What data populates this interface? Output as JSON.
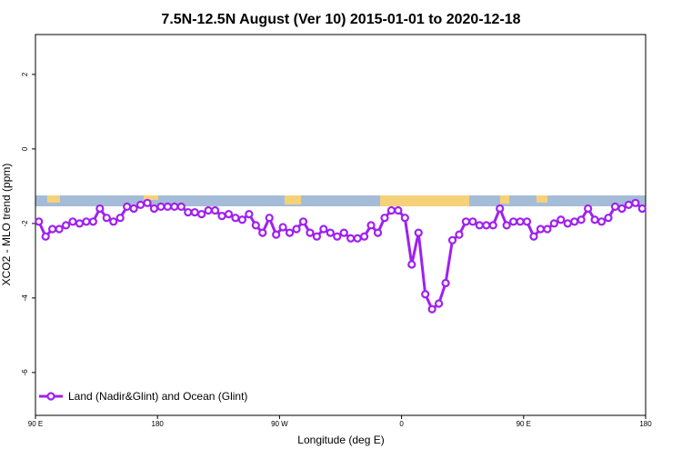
{
  "chart_data": {
    "type": "line",
    "title": "7.5N-12.5N August (Ver 10)   2015-01-01 to 2020-12-18",
    "x_label": "Longitude (deg E)",
    "y_label": "XCO2 - MLO trend (ppm)",
    "xlim": [
      90,
      540
    ],
    "ylim": [
      -7.15,
      3.07
    ],
    "xticks": [
      {
        "value": 90,
        "label": "90 E"
      },
      180,
      {
        "value": 270,
        "label": "90 W"
      },
      {
        "value": 360,
        "label": "0"
      },
      {
        "value": 450,
        "label": "90 E"
      },
      {
        "value": 540,
        "label": "180"
      }
    ],
    "yticks": [
      2,
      0,
      -2,
      -4,
      -6
    ],
    "legend": "bottom-left",
    "series": [
      {
        "name": "Land (Nadir&Glint) and Ocean (Glint)",
        "color": "#a020f0",
        "x": [
          92.5,
          97.5,
          102.5,
          107.5,
          112.5,
          117.5,
          122.5,
          127.5,
          132.5,
          137.5,
          142.5,
          147.5,
          152.5,
          157.5,
          162.5,
          167.5,
          172.5,
          177.5,
          182.5,
          187.5,
          192.5,
          197.5,
          202.5,
          207.5,
          212.5,
          217.5,
          222.5,
          227.5,
          232.5,
          237.5,
          242.5,
          247.5,
          252.5,
          257.5,
          262.5,
          267.5,
          272.5,
          277.5,
          282.5,
          287.5,
          292.5,
          297.5,
          302.5,
          307.5,
          312.5,
          317.5,
          322.5,
          327.5,
          332.5,
          337.5,
          342.5,
          347.5,
          352.5,
          357.5,
          362.5,
          367.5,
          372.5,
          377.5,
          382.5,
          387.5,
          392.5,
          397.5,
          402.5,
          407.5,
          412.5,
          417.5,
          422.5,
          427.5,
          432.5,
          437.5,
          442.5,
          447.5,
          452.5,
          457.5,
          462.5,
          467.5,
          472.5,
          477.5,
          482.5,
          487.5,
          492.5,
          497.5,
          502.5,
          507.5,
          512.5,
          517.5,
          522.5,
          527.5,
          532.5,
          537.5
        ],
        "values": [
          -1.95,
          -2.35,
          -2.15,
          -2.15,
          -2.05,
          -1.95,
          -2.0,
          -1.95,
          -1.95,
          -1.6,
          -1.85,
          -1.95,
          -1.85,
          -1.55,
          -1.6,
          -1.5,
          -1.45,
          -1.6,
          -1.55,
          -1.55,
          -1.55,
          -1.55,
          -1.7,
          -1.7,
          -1.75,
          -1.65,
          -1.65,
          -1.8,
          -1.75,
          -1.85,
          -1.9,
          -1.75,
          -2.05,
          -2.25,
          -1.85,
          -2.3,
          -2.1,
          -2.25,
          -2.15,
          -1.95,
          -2.25,
          -2.35,
          -2.15,
          -2.25,
          -2.35,
          -2.25,
          -2.4,
          -2.4,
          -2.35,
          -2.05,
          -2.25,
          -1.85,
          -1.65,
          -1.65,
          -1.85,
          -3.1,
          -2.25,
          -3.9,
          -4.3,
          -4.15,
          -3.6,
          -2.45,
          -2.3,
          -1.95,
          -1.95,
          -2.05,
          -2.05,
          -2.05,
          -1.6,
          -2.05,
          -1.95,
          -1.95,
          -1.95,
          -2.35,
          -2.15,
          -2.15,
          -2.0,
          -1.9,
          -2.0,
          -1.95,
          -1.9,
          -1.6,
          -1.9,
          -1.95,
          -1.85,
          -1.55,
          -1.6,
          -1.5,
          -1.45,
          -1.6
        ]
      }
    ]
  }
}
